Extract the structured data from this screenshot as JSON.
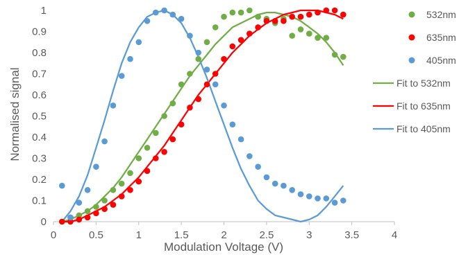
{
  "chart_data": {
    "type": "scatter",
    "title": "",
    "xlabel": "Modulation Voltage (V)",
    "ylabel": "Normalised signal",
    "xlim": [
      0,
      4
    ],
    "ylim": [
      0,
      1
    ],
    "xticks": [
      "0",
      "0.5",
      "1",
      "1.5",
      "2",
      "2.5",
      "3",
      "3.5",
      "4"
    ],
    "yticks": [
      "0",
      "0.1",
      "0.2",
      "0.3",
      "0.4",
      "0.5",
      "0.6",
      "0.7",
      "0.8",
      "0.9",
      "1"
    ],
    "grid": false,
    "legend_position": "right",
    "series": [
      {
        "name": "532nm",
        "kind": "scatter",
        "color": "#70ad47",
        "x": [
          0.1,
          0.2,
          0.3,
          0.4,
          0.5,
          0.6,
          0.7,
          0.8,
          0.9,
          1.0,
          1.1,
          1.2,
          1.3,
          1.4,
          1.5,
          1.6,
          1.7,
          1.8,
          1.9,
          2.0,
          2.1,
          2.2,
          2.3,
          2.4,
          2.5,
          2.6,
          2.7,
          2.8,
          2.9,
          3.0,
          3.1,
          3.2,
          3.3,
          3.4
        ],
        "y": [
          0.0,
          0.02,
          0.03,
          0.05,
          0.07,
          0.1,
          0.15,
          0.18,
          0.23,
          0.3,
          0.35,
          0.42,
          0.5,
          0.56,
          0.65,
          0.7,
          0.77,
          0.85,
          0.92,
          0.97,
          0.99,
          0.99,
          1.0,
          0.97,
          0.96,
          0.94,
          0.96,
          0.88,
          0.91,
          0.89,
          0.87,
          0.87,
          0.79,
          0.78
        ]
      },
      {
        "name": "635nm",
        "kind": "scatter",
        "color": "#ff0000",
        "x": [
          0.1,
          0.2,
          0.3,
          0.4,
          0.5,
          0.6,
          0.7,
          0.8,
          0.9,
          1.0,
          1.1,
          1.2,
          1.3,
          1.4,
          1.5,
          1.6,
          1.7,
          1.8,
          1.9,
          2.0,
          2.1,
          2.2,
          2.3,
          2.4,
          2.5,
          2.6,
          2.7,
          2.8,
          2.9,
          3.0,
          3.1,
          3.2,
          3.3,
          3.4
        ],
        "y": [
          0.0,
          0.0,
          0.01,
          0.02,
          0.04,
          0.06,
          0.08,
          0.12,
          0.15,
          0.19,
          0.24,
          0.3,
          0.33,
          0.39,
          0.46,
          0.54,
          0.58,
          0.65,
          0.7,
          0.77,
          0.83,
          0.86,
          0.89,
          0.92,
          0.95,
          0.95,
          0.95,
          0.97,
          0.97,
          0.98,
          0.99,
          1.0,
          1.0,
          0.98
        ]
      },
      {
        "name": "405nm",
        "kind": "scatter",
        "color": "#5b9bd5",
        "x": [
          0.1,
          0.2,
          0.3,
          0.4,
          0.5,
          0.6,
          0.7,
          0.8,
          0.9,
          1.0,
          1.1,
          1.2,
          1.3,
          1.4,
          1.5,
          1.6,
          1.7,
          1.8,
          1.9,
          2.0,
          2.1,
          2.2,
          2.3,
          2.4,
          2.5,
          2.6,
          2.7,
          2.8,
          2.9,
          3.0,
          3.1,
          3.2,
          3.3,
          3.4
        ],
        "y": [
          0.17,
          0.02,
          0.09,
          0.15,
          0.26,
          0.38,
          0.55,
          0.69,
          0.77,
          0.85,
          0.95,
          0.99,
          1.0,
          0.98,
          0.96,
          0.88,
          0.8,
          0.72,
          0.65,
          0.55,
          0.46,
          0.39,
          0.31,
          0.26,
          0.21,
          0.18,
          0.17,
          0.15,
          0.13,
          0.12,
          0.11,
          0.11,
          0.09,
          0.1
        ]
      },
      {
        "name": "Fit to 532nm",
        "kind": "line",
        "color": "#70ad47",
        "x": [
          0.1,
          0.2,
          0.3,
          0.4,
          0.5,
          0.6,
          0.7,
          0.8,
          0.9,
          1.0,
          1.1,
          1.2,
          1.3,
          1.4,
          1.5,
          1.6,
          1.7,
          1.8,
          1.9,
          2.0,
          2.1,
          2.2,
          2.3,
          2.4,
          2.5,
          2.6,
          2.7,
          2.8,
          2.9,
          3.0,
          3.1,
          3.2,
          3.3,
          3.4
        ],
        "y": [
          0.0,
          0.01,
          0.03,
          0.05,
          0.08,
          0.12,
          0.16,
          0.21,
          0.27,
          0.33,
          0.39,
          0.45,
          0.51,
          0.57,
          0.63,
          0.69,
          0.74,
          0.79,
          0.84,
          0.88,
          0.92,
          0.94,
          0.96,
          0.98,
          0.99,
          0.99,
          0.98,
          0.97,
          0.95,
          0.92,
          0.89,
          0.85,
          0.8,
          0.74
        ]
      },
      {
        "name": "Fit to 635nm",
        "kind": "line",
        "color": "#ff0000",
        "x": [
          0.1,
          0.2,
          0.3,
          0.4,
          0.5,
          0.6,
          0.7,
          0.8,
          0.9,
          1.0,
          1.1,
          1.2,
          1.3,
          1.4,
          1.5,
          1.6,
          1.7,
          1.8,
          1.9,
          2.0,
          2.1,
          2.2,
          2.3,
          2.4,
          2.5,
          2.6,
          2.7,
          2.8,
          2.9,
          3.0,
          3.1,
          3.2,
          3.3,
          3.4
        ],
        "y": [
          0.0,
          0.0,
          0.01,
          0.03,
          0.05,
          0.07,
          0.1,
          0.13,
          0.17,
          0.21,
          0.26,
          0.31,
          0.36,
          0.42,
          0.48,
          0.54,
          0.6,
          0.65,
          0.7,
          0.75,
          0.8,
          0.84,
          0.88,
          0.91,
          0.94,
          0.96,
          0.98,
          0.99,
          1.0,
          1.0,
          1.0,
          0.99,
          0.98,
          0.96
        ]
      },
      {
        "name": "Fit to 405nm",
        "kind": "line",
        "color": "#5b9bd5",
        "x": [
          0.1,
          0.2,
          0.3,
          0.4,
          0.5,
          0.6,
          0.7,
          0.8,
          0.9,
          1.0,
          1.1,
          1.2,
          1.3,
          1.4,
          1.5,
          1.6,
          1.7,
          1.8,
          1.9,
          2.0,
          2.1,
          2.2,
          2.3,
          2.4,
          2.5,
          2.6,
          2.7,
          2.8,
          2.9,
          3.0,
          3.1,
          3.2,
          3.3,
          3.4
        ],
        "y": [
          0.0,
          0.05,
          0.12,
          0.22,
          0.35,
          0.48,
          0.62,
          0.75,
          0.85,
          0.92,
          0.97,
          0.99,
          1.0,
          0.98,
          0.94,
          0.87,
          0.78,
          0.68,
          0.57,
          0.46,
          0.35,
          0.25,
          0.17,
          0.1,
          0.06,
          0.03,
          0.02,
          0.01,
          0.0,
          0.01,
          0.03,
          0.07,
          0.12,
          0.17
        ]
      }
    ]
  }
}
